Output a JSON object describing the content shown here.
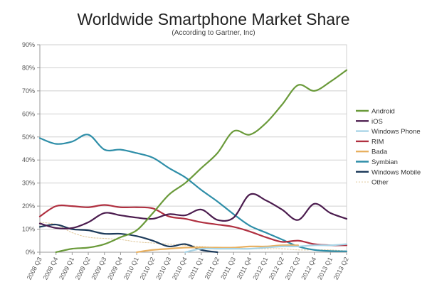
{
  "chart_data": {
    "type": "line",
    "title": "Worldwide Smartphone Market Share",
    "subtitle": "(According to Gartner, Inc)",
    "xlabel": "",
    "ylabel": "",
    "ylim": [
      0,
      90
    ],
    "yticks": [
      "0%",
      "10%",
      "20%",
      "30%",
      "40%",
      "50%",
      "60%",
      "70%",
      "80%",
      "90%"
    ],
    "grid": true,
    "legend_position": "right",
    "categories": [
      "2008 Q3",
      "2008 Q4",
      "2009 Q1",
      "2009 Q2",
      "2009 Q3",
      "2009 Q4",
      "2010 Q1",
      "2010 Q2",
      "2010 Q3",
      "2010 Q4",
      "2011 Q1",
      "2011 Q2",
      "2011 Q3",
      "2011 Q4",
      "2012 Q1",
      "2012 Q2",
      "2012 Q3",
      "2012 Q4",
      "2013 Q1",
      "2013 Q2"
    ],
    "series": [
      {
        "name": "Android",
        "color": "#6a9a3a",
        "dash": false,
        "values": [
          null,
          0,
          1.5,
          2,
          3.5,
          6.5,
          9.5,
          17,
          25,
          30,
          36.5,
          43,
          52.5,
          51,
          56,
          64,
          72.5,
          70,
          74,
          79
        ]
      },
      {
        "name": "iOS",
        "color": "#4b1c4e",
        "dash": false,
        "values": [
          12.5,
          10.5,
          10.5,
          13,
          17,
          16,
          15,
          14.5,
          16.5,
          16,
          18.5,
          14,
          15,
          25,
          22.5,
          18.5,
          14,
          21,
          17,
          14.5
        ]
      },
      {
        "name": "Windows Phone",
        "color": "#a8d4e6",
        "dash": false,
        "values": [
          null,
          null,
          null,
          null,
          null,
          null,
          null,
          null,
          null,
          0,
          1.5,
          1.5,
          1.5,
          1.5,
          2,
          2.5,
          2.5,
          3,
          3,
          3.5
        ]
      },
      {
        "name": "RIM",
        "color": "#b03040",
        "dash": false,
        "values": [
          15.5,
          20,
          20,
          19.5,
          20.5,
          19.5,
          19.5,
          19,
          15.5,
          14.5,
          13,
          12,
          11,
          9,
          6.5,
          4.5,
          5,
          3.5,
          3,
          3
        ]
      },
      {
        "name": "Bada",
        "color": "#e8b060",
        "dash": false,
        "values": [
          null,
          null,
          null,
          null,
          null,
          null,
          0,
          1,
          1.5,
          2,
          2,
          2,
          2,
          2.5,
          2.5,
          3,
          3,
          null,
          null,
          null
        ]
      },
      {
        "name": "Symbian",
        "color": "#2e8ea8",
        "dash": false,
        "values": [
          49.5,
          47,
          48,
          51,
          44.5,
          44.5,
          43,
          41,
          36.5,
          32.5,
          27,
          22,
          16.5,
          11.5,
          8.5,
          5.5,
          2.5,
          1,
          0.5,
          0.4
        ]
      },
      {
        "name": "Windows Mobile",
        "color": "#1c3a5a",
        "dash": false,
        "values": [
          11,
          12,
          10,
          9.5,
          8,
          8,
          7,
          5,
          2.5,
          3.5,
          1,
          0,
          null,
          null,
          null,
          null,
          null,
          null,
          null,
          null
        ]
      },
      {
        "name": "Other",
        "color": "#e0c89a",
        "dash": true,
        "values": [
          13,
          12,
          8.5,
          6.5,
          6,
          5.5,
          4.5,
          4,
          3.5,
          3,
          2.5,
          2,
          2,
          1.5,
          1.5,
          1.5,
          1,
          1,
          1,
          0.5
        ]
      }
    ]
  }
}
